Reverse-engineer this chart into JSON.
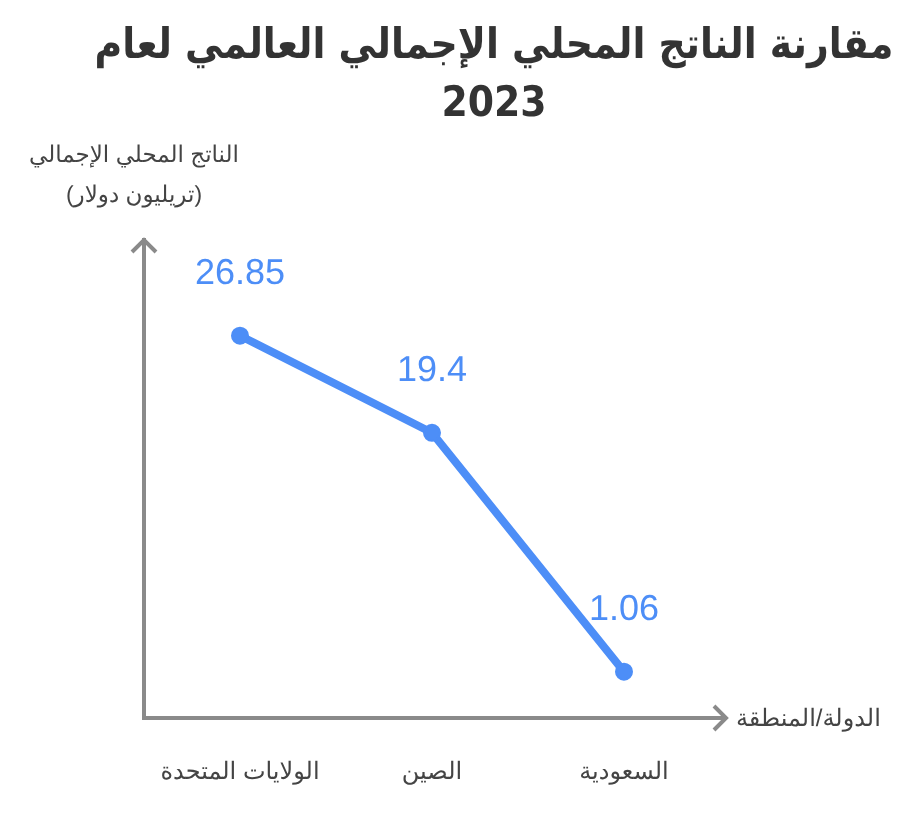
{
  "chart_data": {
    "type": "line",
    "title": "مقارنة الناتج المحلي الإجمالي العالمي لعام 2023",
    "xlabel": "الدولة/المنطقة",
    "ylabel": "الناتج المحلي الإجمالي (تريليون دولار)",
    "categories": [
      "الولايات المتحدة",
      "الصين",
      "السعودية"
    ],
    "values": [
      26.85,
      19.4,
      1.06
    ],
    "color": "#4d8ef7",
    "ylim": [
      -2.5,
      34.2
    ],
    "data_labels": true,
    "tick_labels": "x",
    "grid": false,
    "legend": false,
    "marker": "circle",
    "line_style": "solid"
  }
}
